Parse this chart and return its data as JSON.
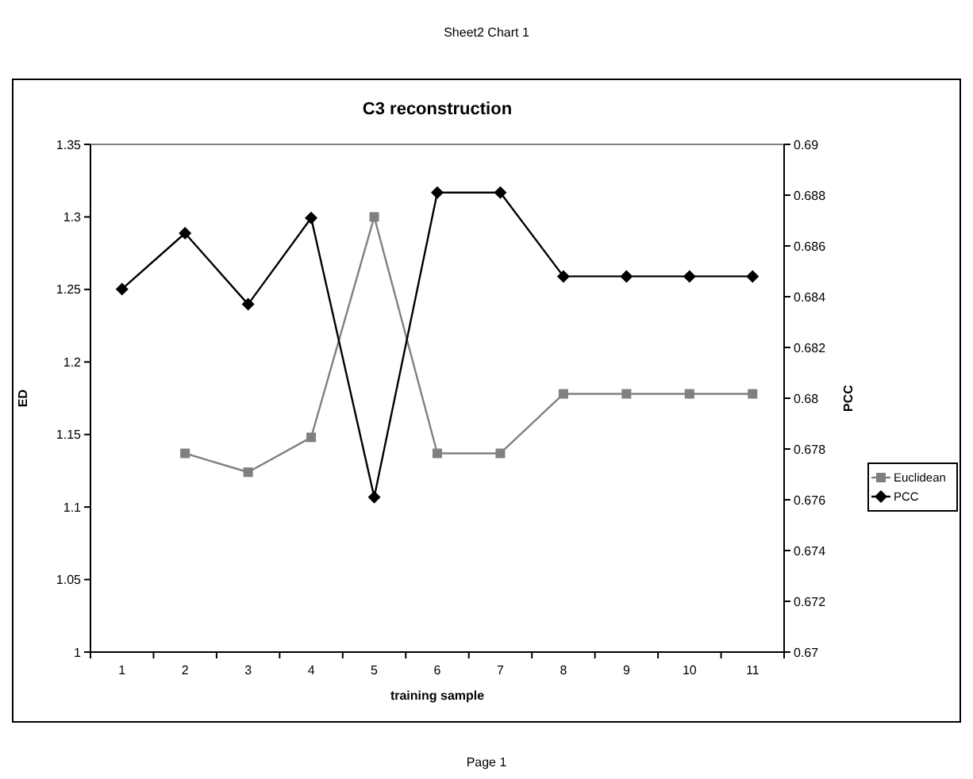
{
  "chart_data": {
    "type": "line",
    "title": "C3 reconstruction",
    "xlabel": "training sample",
    "ylabel": "ED",
    "y2label": "PCC",
    "annotations": [
      "Sheet2 Chart 1",
      "Page 1"
    ],
    "categories": [
      "1",
      "2",
      "3",
      "4",
      "5",
      "6",
      "7",
      "8",
      "9",
      "10",
      "11"
    ],
    "series": [
      {
        "name": "Euclidean",
        "color": "#808080",
        "marker": "square",
        "values": [
          null,
          1.137,
          1.124,
          1.148,
          1.3,
          1.137,
          1.137,
          1.178,
          1.178,
          1.178,
          1.178
        ]
      },
      {
        "name": "PCC",
        "color": "#000000",
        "marker": "diamond",
        "axis": "y2",
        "values": [
          0.6843,
          0.6865,
          0.6837,
          0.6871,
          0.6761,
          0.6881,
          0.6881,
          0.6848,
          0.6848,
          0.6848,
          0.6848
        ]
      }
    ],
    "ylim": [
      1,
      1.35
    ],
    "yticks": [
      1,
      1.05,
      1.1,
      1.15,
      1.2,
      1.25,
      1.3,
      1.35
    ],
    "y2lim": [
      0.67,
      0.69
    ],
    "y2ticks": [
      0.67,
      0.672,
      0.674,
      0.676,
      0.678,
      0.68,
      0.682,
      0.684,
      0.686,
      0.688,
      0.69
    ],
    "grid": false,
    "legend": "right"
  }
}
